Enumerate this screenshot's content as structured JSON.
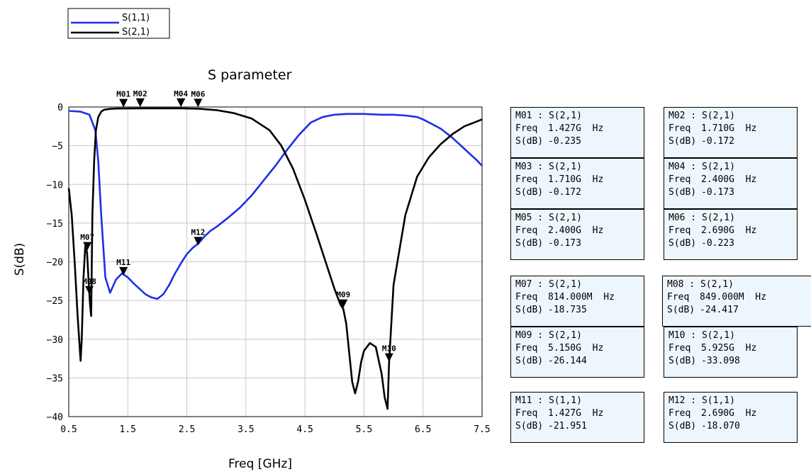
{
  "chart_data": {
    "type": "line",
    "title": "S parameter",
    "xlabel": "Freq [GHz]",
    "ylabel": "S(dB)",
    "xlim": [
      0.5,
      7.5
    ],
    "ylim": [
      -40,
      0
    ],
    "xticks": [
      "0.5",
      "1.5",
      "2.5",
      "3.5",
      "4.5",
      "5.5",
      "6.5",
      "7.5"
    ],
    "yticks": [
      "0",
      "-5",
      "-10",
      "-15",
      "-20",
      "-25",
      "-30",
      "-35",
      "-40"
    ],
    "grid": true,
    "legend_position": "top-left",
    "series": [
      {
        "name": "S(1,1)",
        "color": "#1f2fe6",
        "x": [
          0.5,
          0.7,
          0.85,
          0.95,
          1.0,
          1.05,
          1.12,
          1.2,
          1.3,
          1.4,
          1.5,
          1.6,
          1.7,
          1.8,
          1.9,
          2.0,
          2.1,
          2.2,
          2.3,
          2.4,
          2.5,
          2.6,
          2.7,
          2.8,
          2.9,
          3.0,
          3.2,
          3.4,
          3.6,
          3.8,
          4.0,
          4.2,
          4.4,
          4.6,
          4.8,
          5.0,
          5.2,
          5.5,
          5.8,
          6.0,
          6.2,
          6.4,
          6.5,
          6.6,
          6.8,
          7.0,
          7.2,
          7.4,
          7.5
        ],
        "y": [
          -0.5,
          -0.6,
          -1.0,
          -3.0,
          -7.0,
          -14.0,
          -22.0,
          -24.0,
          -22.3,
          -21.5,
          -22.0,
          -22.8,
          -23.5,
          -24.2,
          -24.6,
          -24.8,
          -24.2,
          -23.0,
          -21.5,
          -20.2,
          -19.0,
          -18.2,
          -17.6,
          -16.7,
          -16.0,
          -15.5,
          -14.3,
          -13.0,
          -11.4,
          -9.5,
          -7.6,
          -5.5,
          -3.6,
          -2.0,
          -1.3,
          -1.0,
          -0.9,
          -0.9,
          -1.0,
          -1.0,
          -1.1,
          -1.3,
          -1.6,
          -2.0,
          -2.8,
          -4.0,
          -5.4,
          -6.8,
          -7.6
        ]
      },
      {
        "name": "S(2,1)",
        "color": "#000000",
        "x": [
          0.5,
          0.55,
          0.6,
          0.65,
          0.7,
          0.72,
          0.75,
          0.78,
          0.81,
          0.84,
          0.86,
          0.88,
          0.9,
          0.93,
          0.96,
          1.0,
          1.05,
          1.1,
          1.2,
          1.3,
          1.5,
          1.8,
          2.0,
          2.4,
          2.7,
          3.0,
          3.3,
          3.6,
          3.9,
          4.1,
          4.3,
          4.5,
          4.7,
          4.85,
          5.0,
          5.1,
          5.15,
          5.2,
          5.3,
          5.35,
          5.4,
          5.45,
          5.5,
          5.6,
          5.7,
          5.8,
          5.85,
          5.9,
          5.925,
          6.0,
          6.2,
          6.4,
          6.6,
          6.8,
          7.0,
          7.2,
          7.4,
          7.5
        ],
        "y": [
          -10.5,
          -14.0,
          -20.0,
          -27.0,
          -32.8,
          -30.0,
          -22.0,
          -18.0,
          -18.8,
          -23.0,
          -25.5,
          -27.0,
          -14.0,
          -7.0,
          -3.0,
          -1.3,
          -0.6,
          -0.35,
          -0.25,
          -0.2,
          -0.19,
          -0.17,
          -0.17,
          -0.17,
          -0.22,
          -0.4,
          -0.8,
          -1.5,
          -3.0,
          -5.0,
          -8.0,
          -12.0,
          -16.5,
          -20.0,
          -23.5,
          -25.5,
          -26.1,
          -28.0,
          -35.5,
          -37.0,
          -35.5,
          -33.0,
          -31.5,
          -30.5,
          -31.0,
          -34.5,
          -37.5,
          -39.0,
          -33.1,
          -23.0,
          -14.0,
          -9.0,
          -6.5,
          -4.8,
          -3.5,
          -2.5,
          -1.9,
          -1.6
        ]
      }
    ],
    "markers": [
      {
        "id": "M01",
        "trace": "S(2,1)",
        "x": 1.427,
        "y": -0.235
      },
      {
        "id": "M02",
        "trace": "S(2,1)",
        "x": 1.71,
        "y": -0.172
      },
      {
        "id": "M03",
        "trace": "S(2,1)",
        "x": 1.71,
        "y": -0.172
      },
      {
        "id": "M04",
        "trace": "S(2,1)",
        "x": 2.4,
        "y": -0.173
      },
      {
        "id": "M05",
        "trace": "S(2,1)",
        "x": 2.4,
        "y": -0.173
      },
      {
        "id": "M06",
        "trace": "S(2,1)",
        "x": 2.69,
        "y": -0.223
      },
      {
        "id": "M07",
        "trace": "S(2,1)",
        "x": 0.814,
        "y": -18.735
      },
      {
        "id": "M08",
        "trace": "S(2,1)",
        "x": 0.849,
        "y": -24.417
      },
      {
        "id": "M09",
        "trace": "S(2,1)",
        "x": 5.15,
        "y": -26.144
      },
      {
        "id": "M10",
        "trace": "S(2,1)",
        "x": 5.925,
        "y": -33.098
      },
      {
        "id": "M11",
        "trace": "S(1,1)",
        "x": 1.427,
        "y": -21.951
      },
      {
        "id": "M12",
        "trace": "S(1,1)",
        "x": 2.69,
        "y": -18.07
      }
    ],
    "marker_plot_labels": [
      {
        "id": "M01",
        "text": "M01"
      },
      {
        "id": "M02",
        "text": "M02"
      },
      {
        "id": "M04",
        "text": "M04"
      },
      {
        "id": "M06",
        "text": "M06"
      },
      {
        "id": "M07",
        "text": "M07"
      },
      {
        "id": "M08",
        "text": "M08"
      },
      {
        "id": "M09",
        "text": "M09"
      },
      {
        "id": "M10",
        "text": "M10"
      },
      {
        "id": "M11",
        "text": "M11"
      },
      {
        "id": "M12",
        "text": "M12"
      }
    ]
  },
  "marker_table": [
    {
      "header": "M01 : S(2,1)",
      "freq_label": "Freq",
      "freq": "1.427G  Hz",
      "val_label": "S(dB)",
      "val": "-0.235"
    },
    {
      "header": "M02 : S(2,1)",
      "freq_label": "Freq",
      "freq": "1.710G  Hz",
      "val_label": "S(dB)",
      "val": "-0.172"
    },
    {
      "header": "M03 : S(2,1)",
      "freq_label": "Freq",
      "freq": "1.710G  Hz",
      "val_label": "S(dB)",
      "val": "-0.172"
    },
    {
      "header": "M04 : S(2,1)",
      "freq_label": "Freq",
      "freq": "2.400G  Hz",
      "val_label": "S(dB)",
      "val": "-0.173"
    },
    {
      "header": "M05 : S(2,1)",
      "freq_label": "Freq",
      "freq": "2.400G  Hz",
      "val_label": "S(dB)",
      "val": "-0.173"
    },
    {
      "header": "M06 : S(2,1)",
      "freq_label": "Freq",
      "freq": "2.690G  Hz",
      "val_label": "S(dB)",
      "val": "-0.223"
    },
    {
      "header": "M07 : S(2,1)",
      "freq_label": "Freq",
      "freq": "814.000M  Hz",
      "val_label": "S(dB)",
      "val": "-18.735"
    },
    {
      "header": "M08 : S(2,1)",
      "freq_label": "Freq",
      "freq": "849.000M  Hz",
      "val_label": "S(dB)",
      "val": "-24.417"
    },
    {
      "header": "M09 : S(2,1)",
      "freq_label": "Freq",
      "freq": "5.150G  Hz",
      "val_label": "S(dB)",
      "val": "-26.144"
    },
    {
      "header": "M10 : S(2,1)",
      "freq_label": "Freq",
      "freq": "5.925G  Hz",
      "val_label": "S(dB)",
      "val": "-33.098"
    },
    {
      "header": "M11 : S(1,1)",
      "freq_label": "Freq",
      "freq": "1.427G  Hz",
      "val_label": "S(dB)",
      "val": "-21.951"
    },
    {
      "header": "M12 : S(1,1)",
      "freq_label": "Freq",
      "freq": "2.690G  Hz",
      "val_label": "S(dB)",
      "val": "-18.070"
    }
  ]
}
